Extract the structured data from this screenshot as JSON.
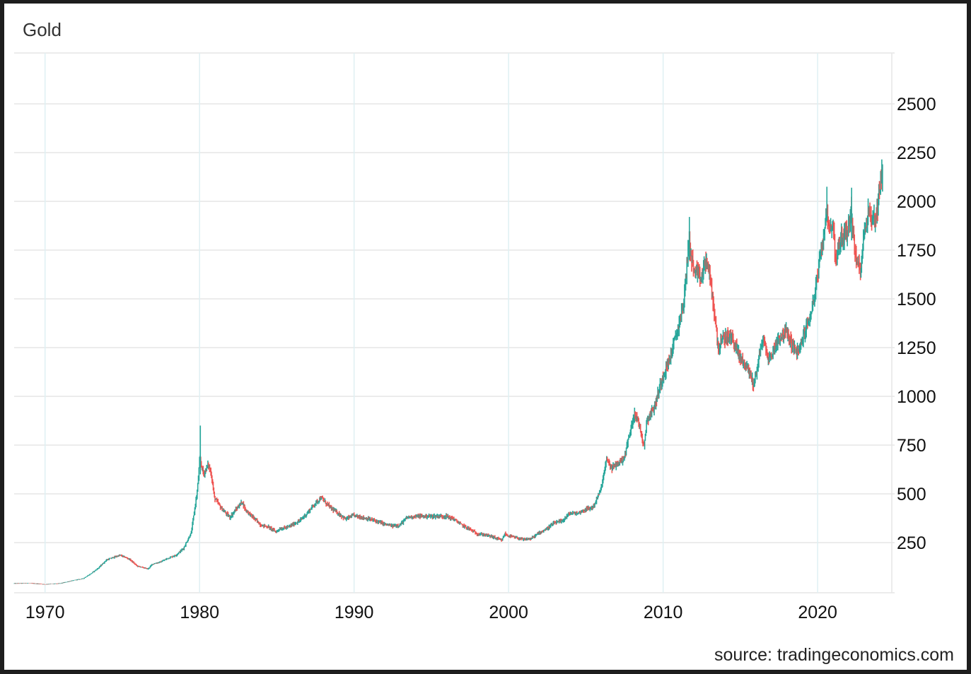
{
  "chart_data": {
    "type": "candlestick",
    "title": "Gold",
    "source": "source: tradingeconomics.com",
    "x_ticks": [
      "1970",
      "1980",
      "1990",
      "2000",
      "2010",
      "2020"
    ],
    "y_ticks": [
      250,
      500,
      750,
      1000,
      1250,
      1500,
      1750,
      2000,
      2250,
      2500
    ],
    "xlim": [
      1968,
      2024.8
    ],
    "ylim": [
      0,
      2750
    ],
    "grid": true,
    "y_axis_position": "right",
    "colors": {
      "up": "#26a69a",
      "down": "#ef5350",
      "grid": "#e6e6e6",
      "vgrid": "#dff0f3"
    },
    "series": [
      {
        "name": "Gold",
        "x": [
          1968.0,
          1969.0,
          1970.0,
          1971.0,
          1972.0,
          1972.5,
          1973.0,
          1973.5,
          1974.0,
          1974.5,
          1974.9,
          1975.5,
          1976.0,
          1976.7,
          1977.0,
          1977.5,
          1978.0,
          1978.5,
          1979.0,
          1979.5,
          1979.9,
          1980.05,
          1980.3,
          1980.6,
          1980.8,
          1981.0,
          1981.5,
          1982.0,
          1982.5,
          1982.8,
          1983.0,
          1983.5,
          1984.0,
          1984.5,
          1985.0,
          1985.2,
          1985.8,
          1986.0,
          1986.5,
          1987.0,
          1987.5,
          1987.9,
          1988.5,
          1989.0,
          1989.5,
          1990.0,
          1990.5,
          1991.0,
          1991.5,
          1992.0,
          1992.5,
          1993.0,
          1993.5,
          1994.0,
          1995.0,
          1996.0,
          1996.5,
          1997.0,
          1997.5,
          1998.0,
          1998.5,
          1999.0,
          1999.6,
          1999.8,
          2000.0,
          2000.5,
          2001.0,
          2001.5,
          2002.0,
          2002.5,
          2003.0,
          2003.5,
          2004.0,
          2004.5,
          2005.0,
          2005.5,
          2006.0,
          2006.4,
          2006.7,
          2007.0,
          2007.5,
          2008.0,
          2008.2,
          2008.5,
          2008.8,
          2009.0,
          2009.5,
          2010.0,
          2010.5,
          2011.0,
          2011.4,
          2011.7,
          2011.9,
          2012.0,
          2012.5,
          2012.8,
          2013.0,
          2013.4,
          2013.6,
          2014.0,
          2014.5,
          2015.0,
          2015.5,
          2015.9,
          2016.0,
          2016.5,
          2016.8,
          2017.0,
          2017.5,
          2018.0,
          2018.5,
          2018.8,
          2019.0,
          2019.5,
          2019.8,
          2020.0,
          2020.3,
          2020.6,
          2020.9,
          2021.0,
          2021.2,
          2021.5,
          2022.0,
          2022.2,
          2022.5,
          2022.8,
          2023.0,
          2023.3,
          2023.6,
          2023.9,
          2024.0,
          2024.2
        ],
        "values": [
          40,
          42,
          36,
          40,
          58,
          65,
          90,
          120,
          160,
          175,
          185,
          165,
          130,
          115,
          140,
          150,
          170,
          185,
          220,
          300,
          520,
          680,
          600,
          650,
          600,
          480,
          420,
          380,
          430,
          460,
          420,
          380,
          340,
          330,
          305,
          320,
          330,
          340,
          360,
          400,
          450,
          480,
          430,
          400,
          370,
          390,
          380,
          370,
          360,
          345,
          335,
          340,
          380,
          385,
          385,
          385,
          370,
          340,
          320,
          295,
          290,
          280,
          260,
          295,
          285,
          275,
          265,
          270,
          300,
          320,
          350,
          360,
          400,
          400,
          420,
          430,
          520,
          680,
          630,
          650,
          680,
          850,
          920,
          850,
          750,
          880,
          950,
          1100,
          1200,
          1350,
          1500,
          1800,
          1700,
          1650,
          1600,
          1700,
          1650,
          1400,
          1250,
          1300,
          1300,
          1200,
          1150,
          1060,
          1100,
          1300,
          1200,
          1200,
          1300,
          1330,
          1250,
          1220,
          1280,
          1400,
          1500,
          1600,
          1750,
          1950,
          1850,
          1900,
          1700,
          1800,
          1850,
          1950,
          1700,
          1650,
          1800,
          1950,
          1900,
          1950,
          2050,
          2150
        ]
      }
    ]
  }
}
